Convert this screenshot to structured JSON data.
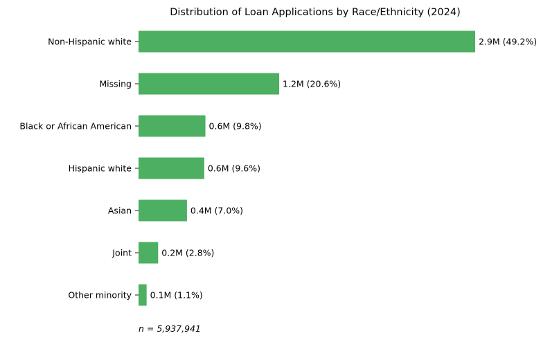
{
  "chart_data": {
    "type": "bar",
    "orientation": "horizontal",
    "title": "Distribution of Loan Applications by Race/Ethnicity (2024)",
    "xlabel": "",
    "ylabel": "",
    "categories": [
      "Non-Hispanic white",
      "Missing",
      "Black or African American",
      "Hispanic white",
      "Asian",
      "Joint",
      "Other minority"
    ],
    "values": [
      2.92,
      1.22,
      0.58,
      0.57,
      0.42,
      0.17,
      0.07
    ],
    "data_labels": [
      "2.9M (49.2%)",
      "1.2M (20.6%)",
      "0.6M (9.8%)",
      "0.6M (9.6%)",
      "0.4M (7.0%)",
      "0.2M (2.8%)",
      "0.1M (1.1%)"
    ],
    "annotation": "n = 5,937,941",
    "bar_color": "#4caf61",
    "grid": false,
    "x_axis_visible": false
  }
}
